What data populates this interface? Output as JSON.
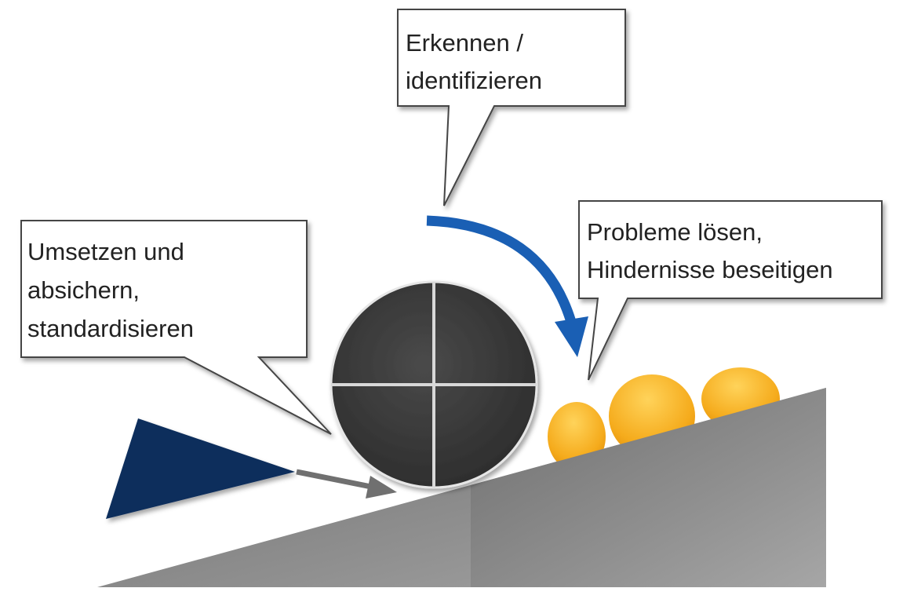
{
  "callouts": {
    "identify": {
      "lines": [
        "Erkennen /",
        "identifizieren"
      ]
    },
    "implement": {
      "lines": [
        "Umsetzen und",
        "absichern,",
        "standardisieren"
      ]
    },
    "solve": {
      "lines": [
        "Probleme lösen,",
        "Hindernisse beseitigen"
      ]
    }
  },
  "colors": {
    "wedge": "#8a8a8a",
    "wheel": "#3d3d3d",
    "wheel_cross": "#d8d8d8",
    "rotation_arrow": "#1a5fb4",
    "push_triangle": "#0b2d5c",
    "push_arrow": "#6e6e6e",
    "obstacles": "#f2a81d",
    "callout_fill": "#ffffff",
    "callout_stroke": "#444444"
  },
  "icons": {
    "wheel": "quartered-circle",
    "rotation": "curved-arrow-clockwise",
    "push": "triangle-wedge",
    "obstacles": "ellipse-bumps"
  }
}
